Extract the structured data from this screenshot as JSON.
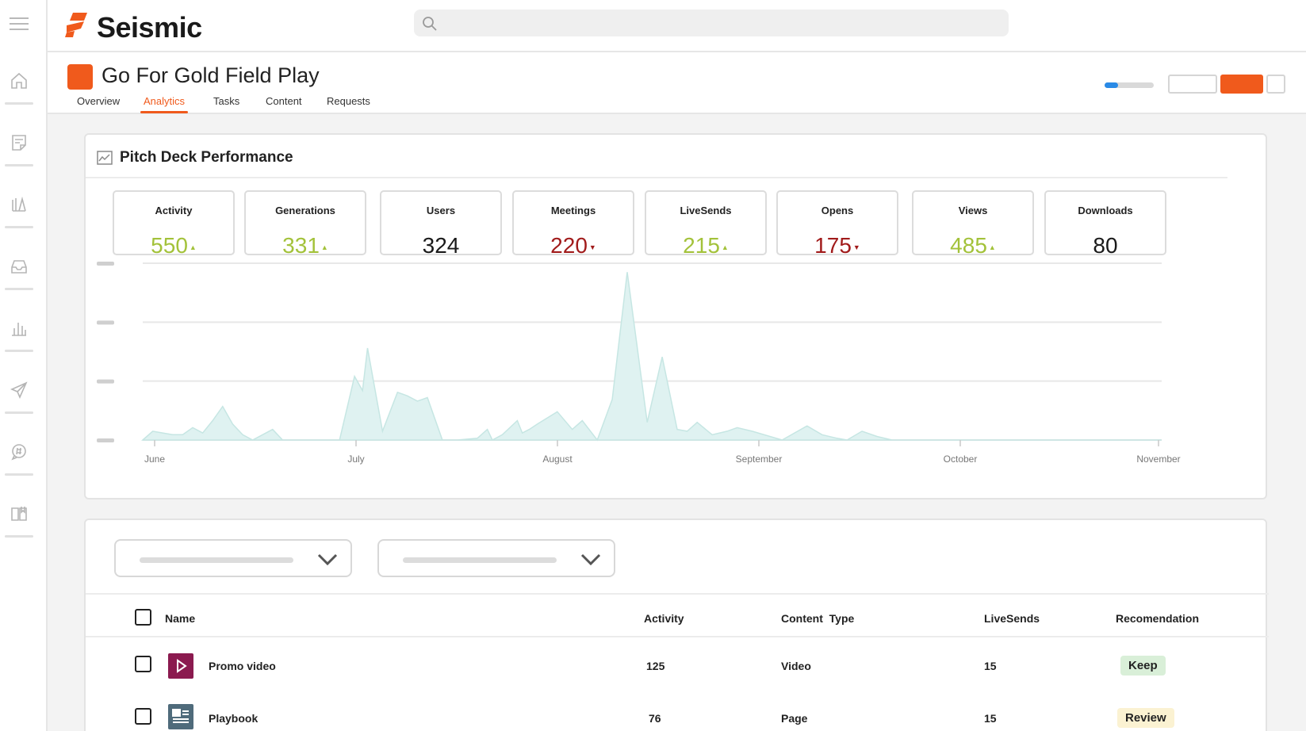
{
  "app": {
    "brand": "Seismic",
    "accent": "#f05a1c"
  },
  "rail": {
    "items": [
      "home-icon",
      "note-icon",
      "library-icon",
      "inbox-icon",
      "chart-icon",
      "send-icon",
      "chat-icon",
      "book-icon"
    ]
  },
  "page": {
    "title": "Go For Gold Field Play",
    "tabs": [
      {
        "label": "Overview",
        "active": false
      },
      {
        "label": "Analytics",
        "active": true
      },
      {
        "label": "Tasks",
        "active": false
      },
      {
        "label": "Content",
        "active": false
      },
      {
        "label": "Requests",
        "active": false
      }
    ],
    "progress_fraction": 0.28
  },
  "performance": {
    "title": "Pitch Deck Performance",
    "stats": [
      {
        "label": "Activity",
        "value": "550",
        "trend": "up"
      },
      {
        "label": "Generations",
        "value": "331",
        "trend": "up"
      },
      {
        "label": "Users",
        "value": "324",
        "trend": "none"
      },
      {
        "label": "Meetings",
        "value": "220",
        "trend": "down"
      },
      {
        "label": "LiveSends",
        "value": "215",
        "trend": "up"
      },
      {
        "label": "Opens",
        "value": "175",
        "trend": "down"
      },
      {
        "label": "Views",
        "value": "485",
        "trend": "up"
      },
      {
        "label": "Downloads",
        "value": "80",
        "trend": "none"
      }
    ],
    "trend_colors": {
      "up": "#a3c23a",
      "down": "#a11b1b",
      "none": "#1a1a1a"
    }
  },
  "chart_data": {
    "type": "area",
    "x_ticks": [
      "June",
      "July",
      "August",
      "September",
      "October",
      "November"
    ],
    "y_tick_labels_visible": false,
    "grid": true,
    "fill_color": "#dff2f1",
    "stroke_color": "#c6e6e3",
    "x": [
      0,
      0.1,
      0.2,
      0.3,
      0.4,
      0.5,
      0.6,
      0.7,
      0.8,
      0.9,
      1.0,
      1.1,
      1.2,
      1.3,
      1.4,
      1.55,
      1.7,
      1.75,
      1.85,
      1.97,
      2.12,
      2.2,
      2.25,
      2.4,
      2.55,
      2.65,
      2.75,
      2.85,
      3.0,
      3.05,
      3.15,
      3.35,
      3.45,
      3.5,
      3.6,
      3.75,
      3.8,
      3.87,
      3.95,
      4.15,
      4.3,
      4.4,
      4.55,
      4.7,
      4.85,
      5.05,
      5.2,
      5.35,
      5.45,
      5.55,
      5.7,
      5.85,
      5.95,
      6.1,
      6.4,
      6.65,
      6.8,
      6.95,
      7.05,
      7.2,
      7.35,
      7.5,
      7.65,
      7.85,
      8.0,
      8.15,
      8.35,
      8.55,
      8.75,
      8.9,
      9.05,
      9.15,
      9.25,
      9.35,
      9.5,
      9.65,
      9.8,
      9.95,
      10.1,
      10.2
    ],
    "y": [
      0,
      0.05,
      0.04,
      0.03,
      0.03,
      0.07,
      0.04,
      0.11,
      0.19,
      0.09,
      0.03,
      0.0,
      0.03,
      0.06,
      0.0,
      0.0,
      0.0,
      0.0,
      0.0,
      0.0,
      0.36,
      0.28,
      0.52,
      0.05,
      0.27,
      0.25,
      0.22,
      0.24,
      0.0,
      0.0,
      0.0,
      0.01,
      0.06,
      0.0,
      0.03,
      0.11,
      0.04,
      0.06,
      0.09,
      0.16,
      0.06,
      0.11,
      0.0,
      0.23,
      0.95,
      0.1,
      0.47,
      0.06,
      0.05,
      0.1,
      0.03,
      0.05,
      0.07,
      0.05,
      0.0,
      0.08,
      0.03,
      0.01,
      0.0,
      0.05,
      0.02,
      0.0,
      0.0,
      0.0,
      0.0,
      0.0,
      0.0,
      0.0,
      0.0,
      0.0,
      0.0,
      0.0,
      0.0,
      0.0,
      0.0,
      0.0,
      0.0,
      0.0,
      0.0,
      0.0
    ],
    "ylim": [
      0,
      1
    ],
    "xlim": [
      0,
      10.2
    ]
  },
  "filters": {
    "dropdowns": [
      "filter-one",
      "filter-two"
    ]
  },
  "table": {
    "columns": [
      "Name",
      "Activity",
      "Content  Type",
      "LiveSends",
      "Recomendation"
    ],
    "rows": [
      {
        "name": "Promo video",
        "activity": "125",
        "content_type": "Video",
        "livesends": "15",
        "recommendation": "Keep",
        "icon": "video-play-icon",
        "icon_color": "#8b1a4f",
        "rec_color": "#d9efd8"
      },
      {
        "name": "Playbook",
        "activity": "76",
        "content_type": "Page",
        "livesends": "15",
        "recommendation": "Review",
        "icon": "page-doc-icon",
        "icon_color": "#4f6b7b",
        "rec_color": "#fbf2d2"
      }
    ]
  }
}
